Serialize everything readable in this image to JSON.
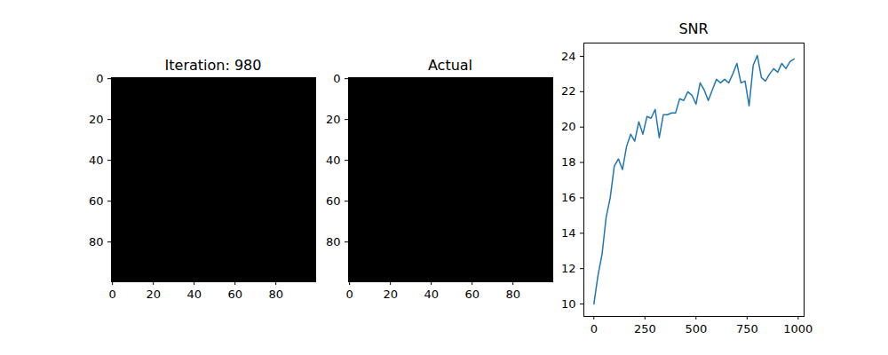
{
  "chart_data": [
    {
      "type": "image",
      "title": "Iteration: 980",
      "xlim": [
        -0.5,
        99.5
      ],
      "ylim": [
        99.5,
        -0.5
      ],
      "xticks": [
        0,
        20,
        40,
        60,
        80
      ],
      "yticks": [
        0,
        20,
        40,
        60,
        80
      ]
    },
    {
      "type": "image",
      "title": "Actual",
      "xlim": [
        -0.5,
        99.5
      ],
      "ylim": [
        99.5,
        -0.5
      ],
      "xticks": [
        0,
        20,
        40,
        60,
        80
      ],
      "yticks": [
        0,
        20,
        40,
        60,
        80
      ]
    },
    {
      "type": "line",
      "title": "SNR",
      "color": "#1f77b4",
      "x": [
        0,
        20,
        40,
        60,
        80,
        100,
        120,
        140,
        160,
        180,
        200,
        220,
        240,
        260,
        280,
        300,
        320,
        340,
        360,
        380,
        400,
        420,
        440,
        460,
        480,
        500,
        520,
        540,
        560,
        580,
        600,
        620,
        640,
        660,
        680,
        700,
        720,
        740,
        760,
        780,
        800,
        820,
        840,
        860,
        880,
        900,
        920,
        940,
        960,
        980
      ],
      "values": [
        10.0,
        11.6,
        12.8,
        14.9,
        16.0,
        17.8,
        18.2,
        17.6,
        18.9,
        19.6,
        19.2,
        20.3,
        19.6,
        20.6,
        20.5,
        21.0,
        19.4,
        20.7,
        20.7,
        20.8,
        20.8,
        21.6,
        21.5,
        22.0,
        21.8,
        21.3,
        22.5,
        22.1,
        21.5,
        22.1,
        22.7,
        22.5,
        22.7,
        22.5,
        23.0,
        23.6,
        22.5,
        22.6,
        21.2,
        23.5,
        24.05,
        22.8,
        22.6,
        23.0,
        23.3,
        23.1,
        23.6,
        23.3,
        23.7,
        23.85
      ],
      "xlim": [
        -49,
        1029
      ],
      "ylim": [
        9.3,
        24.75
      ],
      "xticks": [
        0,
        250,
        500,
        750,
        1000
      ],
      "yticks": [
        10,
        12,
        14,
        16,
        18,
        20,
        22,
        24
      ]
    }
  ]
}
